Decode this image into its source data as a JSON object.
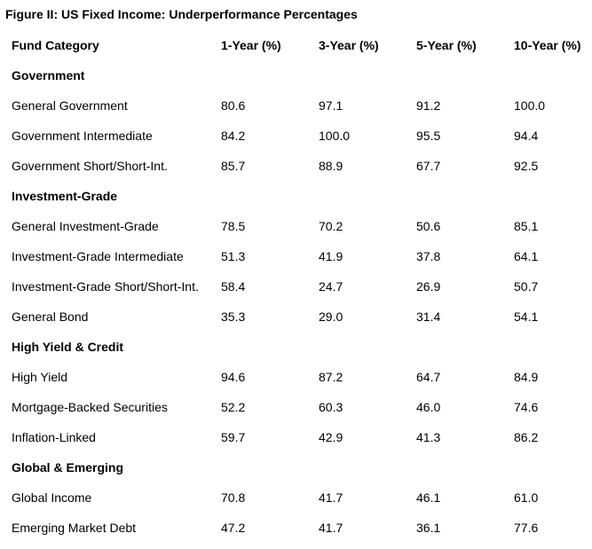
{
  "title": "Figure II: US Fixed Income: Underperformance Percentages",
  "chart_data": {
    "type": "table",
    "title": "Figure II: US Fixed Income: Underperformance Percentages",
    "columns": [
      "Fund Category",
      "1-Year (%)",
      "3-Year (%)",
      "5-Year (%)",
      "10-Year (%)"
    ],
    "groups": [
      {
        "name": "Government",
        "rows": [
          {
            "category": "General Government",
            "values": [
              "80.6",
              "97.1",
              "91.2",
              "100.0"
            ]
          },
          {
            "category": "Government Intermediate",
            "values": [
              "84.2",
              "100.0",
              "95.5",
              "94.4"
            ]
          },
          {
            "category": "Government Short/Short-Int.",
            "values": [
              "85.7",
              "88.9",
              "67.7",
              "92.5"
            ]
          }
        ]
      },
      {
        "name": "Investment-Grade",
        "rows": [
          {
            "category": "General Investment-Grade",
            "values": [
              "78.5",
              "70.2",
              "50.6",
              "85.1"
            ]
          },
          {
            "category": "Investment-Grade Intermediate",
            "values": [
              "51.3",
              "41.9",
              "37.8",
              "64.1"
            ]
          },
          {
            "category": "Investment-Grade Short/Short-Int.",
            "values": [
              "58.4",
              "24.7",
              "26.9",
              "50.7"
            ]
          },
          {
            "category": "General Bond",
            "values": [
              "35.3",
              "29.0",
              "31.4",
              "54.1"
            ]
          }
        ]
      },
      {
        "name": "High Yield & Credit",
        "rows": [
          {
            "category": "High Yield",
            "values": [
              "94.6",
              "87.2",
              "64.7",
              "84.9"
            ]
          },
          {
            "category": "Mortgage-Backed Securities",
            "values": [
              "52.2",
              "60.3",
              "46.0",
              "74.6"
            ]
          },
          {
            "category": "Inflation-Linked",
            "values": [
              "59.7",
              "42.9",
              "41.3",
              "86.2"
            ]
          }
        ]
      },
      {
        "name": "Global & Emerging",
        "rows": [
          {
            "category": "Global Income",
            "values": [
              "70.8",
              "41.7",
              "46.1",
              "61.0"
            ]
          },
          {
            "category": "Emerging Market Debt",
            "values": [
              "47.2",
              "41.7",
              "36.1",
              "77.6"
            ]
          }
        ]
      }
    ]
  }
}
